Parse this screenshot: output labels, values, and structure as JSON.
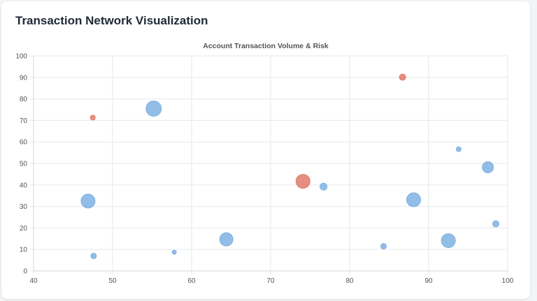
{
  "page": {
    "title": "Transaction Network Visualization"
  },
  "colors": {
    "normal": "#7fb1e2",
    "risk": "#e07a6b",
    "grid": "#e5e7eb",
    "axis": "#d1d5db",
    "tick_text": "#555555",
    "title_text": "#555555"
  },
  "chart_data": {
    "type": "scatter",
    "title": "Account Transaction Volume & Risk",
    "xlabel": "",
    "ylabel": "",
    "xlim": [
      40,
      100
    ],
    "ylim": [
      0,
      100
    ],
    "xticks": [
      40,
      50,
      60,
      70,
      80,
      90,
      100
    ],
    "yticks": [
      0,
      10,
      20,
      30,
      40,
      50,
      60,
      70,
      80,
      90,
      100
    ],
    "grid": true,
    "legend": "none",
    "series": [
      {
        "color": "#7fb1e2",
        "points": [
          {
            "x": 55.2,
            "y": 75.5,
            "r": 11
          },
          {
            "x": 46.9,
            "y": 32.5,
            "r": 10
          },
          {
            "x": 47.6,
            "y": 7.0,
            "r": 4
          },
          {
            "x": 57.8,
            "y": 8.7,
            "r": 3
          },
          {
            "x": 64.4,
            "y": 14.7,
            "r": 9.5
          },
          {
            "x": 76.7,
            "y": 39.2,
            "r": 5
          },
          {
            "x": 84.3,
            "y": 11.5,
            "r": 4
          },
          {
            "x": 88.1,
            "y": 33.1,
            "r": 10
          },
          {
            "x": 92.5,
            "y": 14.1,
            "r": 10
          },
          {
            "x": 93.8,
            "y": 56.6,
            "r": 3.5
          },
          {
            "x": 97.5,
            "y": 48.2,
            "r": 8
          },
          {
            "x": 98.5,
            "y": 21.9,
            "r": 4.5
          }
        ]
      },
      {
        "color": "#e07a6b",
        "points": [
          {
            "x": 47.5,
            "y": 71.3,
            "r": 3.5
          },
          {
            "x": 74.1,
            "y": 41.7,
            "r": 10
          },
          {
            "x": 86.7,
            "y": 90.1,
            "r": 4.5
          }
        ]
      }
    ]
  }
}
